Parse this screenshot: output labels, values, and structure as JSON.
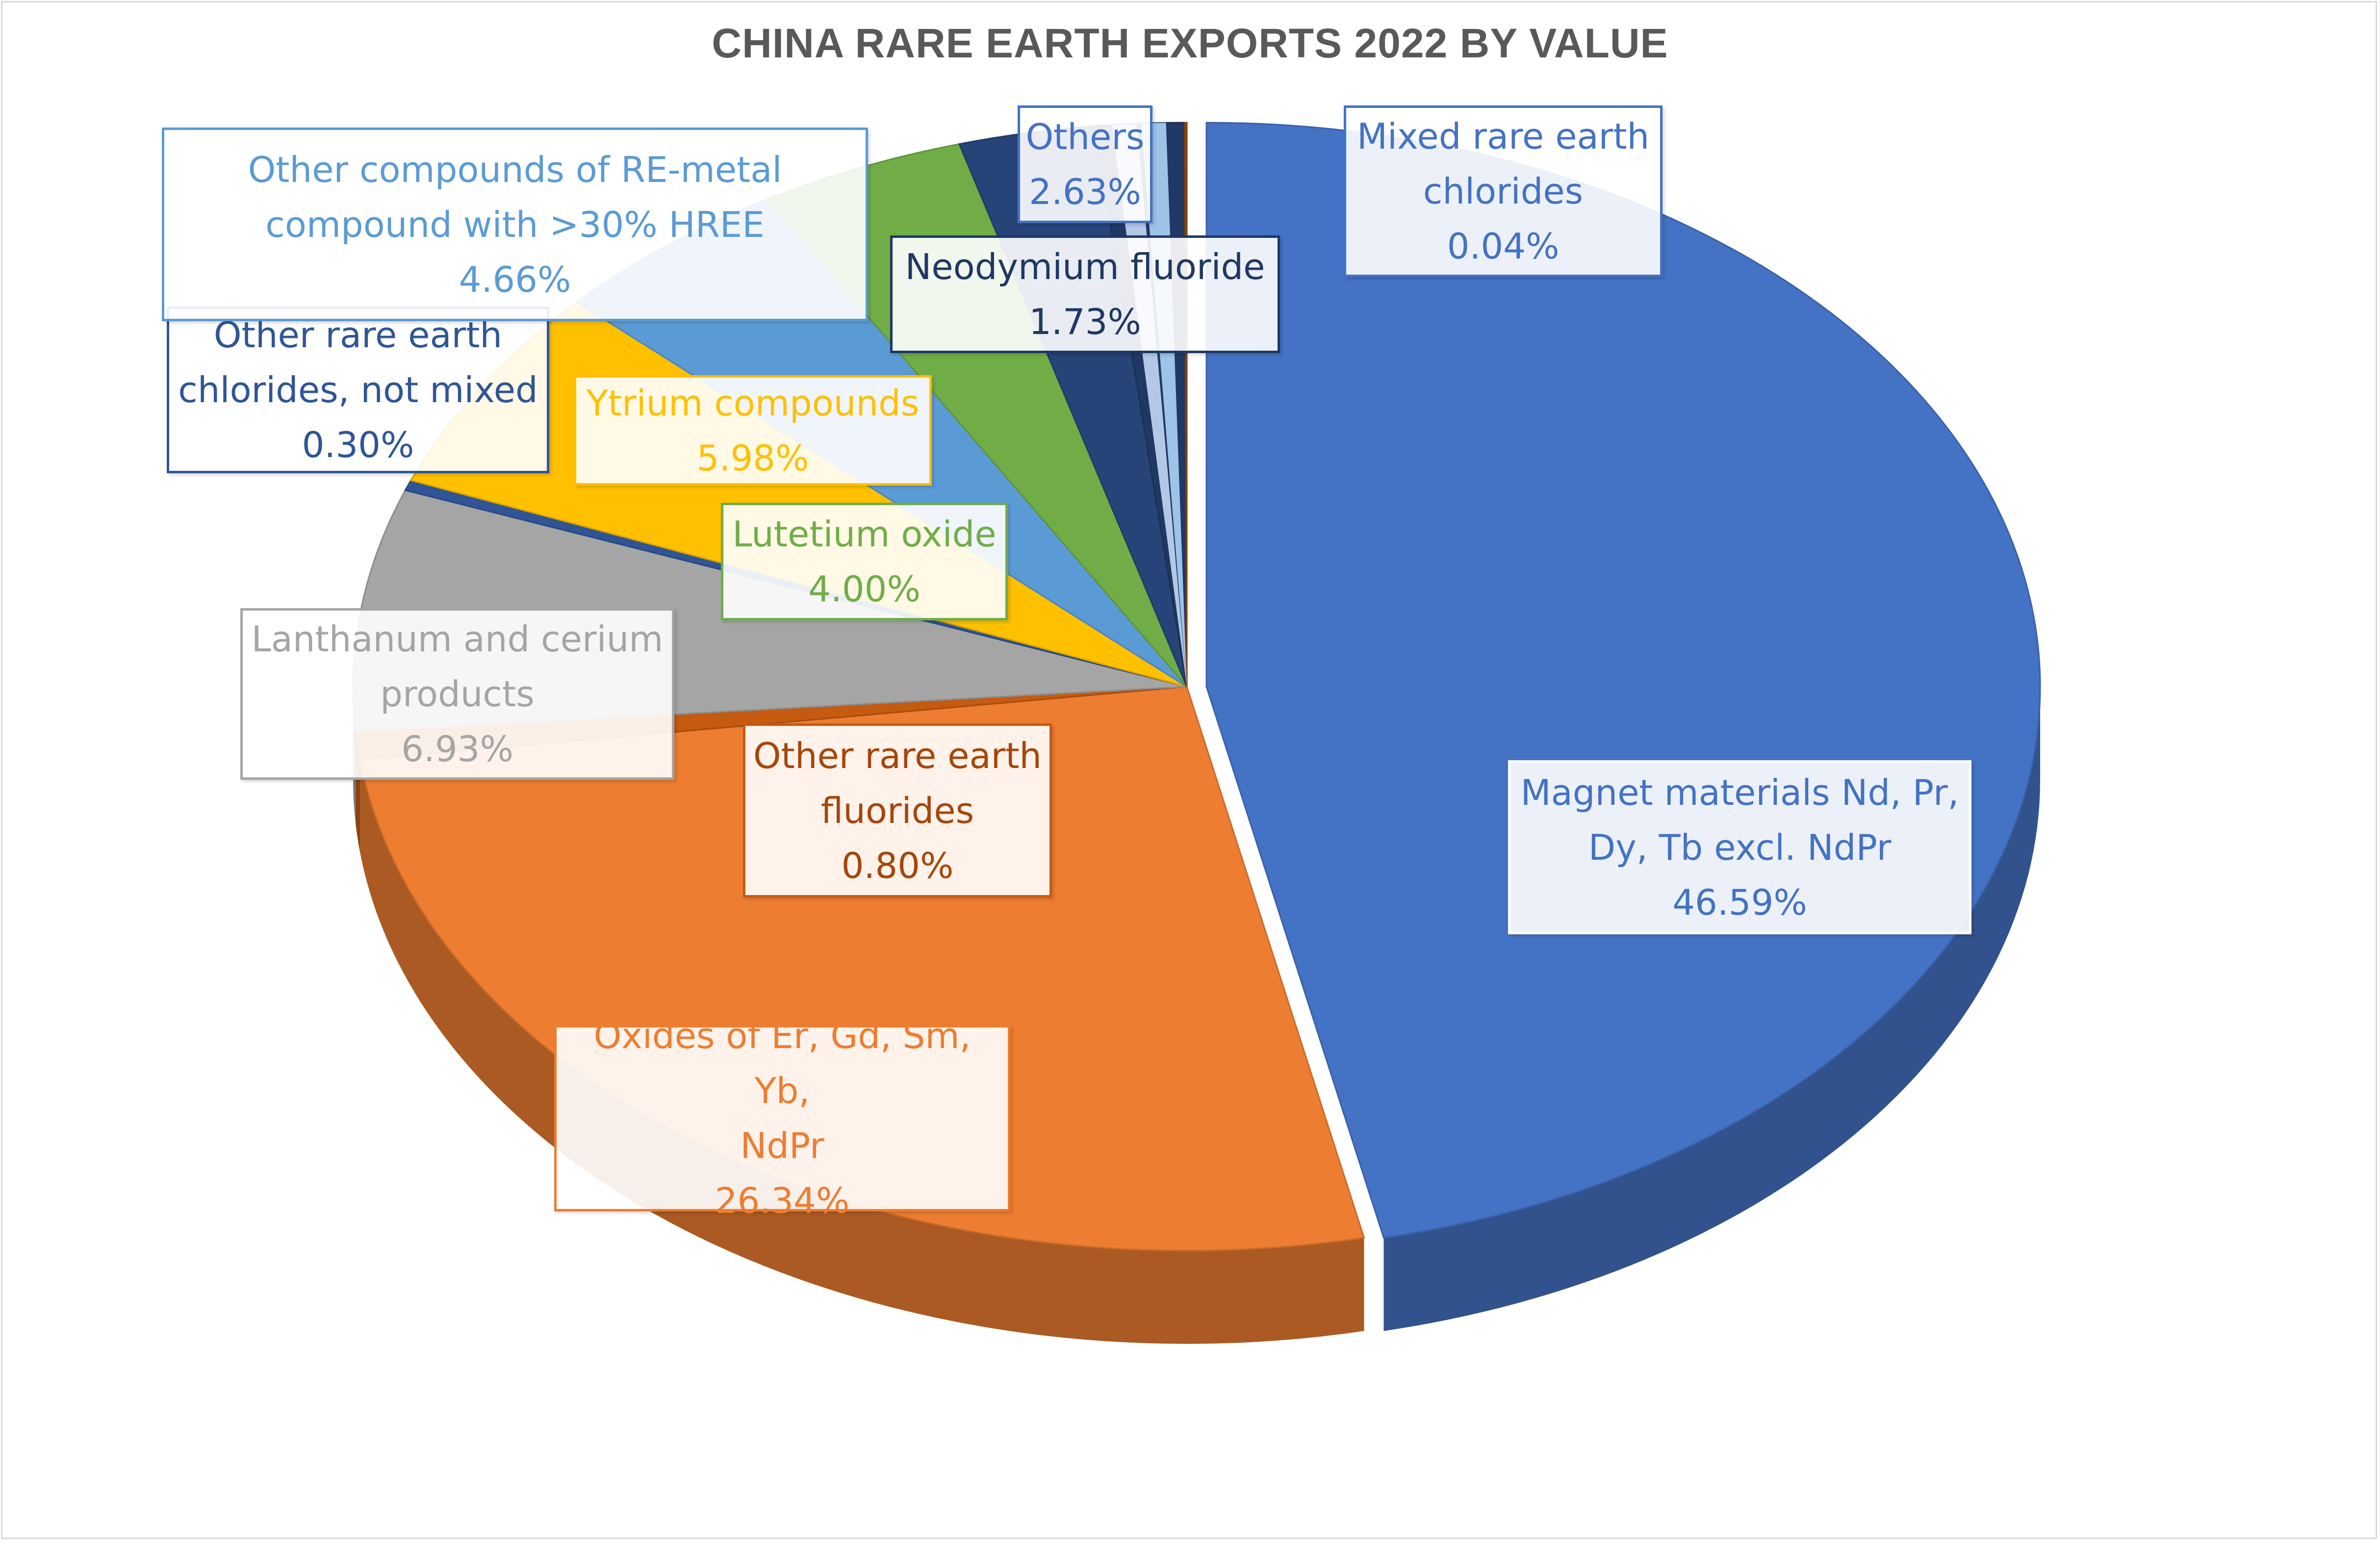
{
  "chart_data": {
    "type": "pie",
    "title": "CHINA RARE EARTH EXPORTS 2022 BY VALUE",
    "slices": [
      {
        "label": "Magnet materials Nd, Pr, Dy, Tb excl. NdPr",
        "value": 46.59,
        "value_label": "46.59%",
        "color": "#4472c4",
        "text_color": "#4472c4"
      },
      {
        "label": "Oxides of Er, Gd, Sm, Yb, NdPr",
        "value": 26.34,
        "value_label": "26.34%",
        "color": "#ed7d31",
        "text_color": "#ed7d31"
      },
      {
        "label": "Other rare earth fluorides",
        "value": 0.8,
        "value_label": "0.80%",
        "color": "#c55a11",
        "text_color": "#a5460a"
      },
      {
        "label": "Lanthanum and cerium products",
        "value": 6.93,
        "value_label": "6.93%",
        "color": "#a5a5a5",
        "text_color": "#a5a5a5"
      },
      {
        "label": "Other rare earth chlorides, not mixed",
        "value": 0.3,
        "value_label": "0.30%",
        "color": "#2f5597",
        "text_color": "#2f5597"
      },
      {
        "label": "Ytrium compounds",
        "value": 5.98,
        "value_label": "5.98%",
        "color": "#ffc000",
        "text_color": "#ffc000"
      },
      {
        "label": "Other compounds of RE-metal compound with >30% HREE",
        "value": 4.66,
        "value_label": "4.66%",
        "color": "#5b9bd5",
        "text_color": "#5b9bd5"
      },
      {
        "label": "Lutetium oxide",
        "value": 4.0,
        "value_label": "4.00%",
        "color": "#70ad47",
        "text_color": "#70ad47"
      },
      {
        "label": "Others",
        "value": 2.63,
        "value_label": "2.63%",
        "color": "#264478",
        "text_color": "#4472c4"
      },
      {
        "label": "Neodymium fluoride",
        "value": 1.73,
        "value_label": "1.73%",
        "color": "#1f3864",
        "text_color": "#1f3864"
      },
      {
        "label": "Mixed rare earth chlorides",
        "value": 0.04,
        "value_label": "0.04%",
        "color": "#9e480e",
        "text_color": "#4472c4"
      }
    ],
    "extra_segments": [
      {
        "color": "#b4c7e7"
      },
      {
        "color": "#9dc3e6"
      }
    ],
    "legend": "none",
    "style": "3d-exploded-pie"
  },
  "callouts": [
    {
      "id": "magnet",
      "lines": [
        "Magnet materials Nd, Pr,",
        "Dy, Tb excl. NdPr",
        "46.59%"
      ],
      "color": "#4472c4",
      "border": "#ffffff"
    },
    {
      "id": "oxides",
      "lines": [
        "Oxides of Er, Gd, Sm, Yb,",
        "NdPr",
        "26.34%"
      ],
      "color": "#ed7d31",
      "border": "#ed7d31"
    },
    {
      "id": "fluorides",
      "lines": [
        "Other rare earth",
        "fluorides",
        "0.80%"
      ],
      "color": "#a5460a",
      "border": "#c55a11"
    },
    {
      "id": "lanthanum",
      "lines": [
        "Lanthanum and cerium",
        "products",
        "6.93%"
      ],
      "color": "#a5a5a5",
      "border": "#a5a5a5"
    },
    {
      "id": "chlorides-not-mixed",
      "lines": [
        "Other rare earth",
        "chlorides, not mixed",
        "0.30%"
      ],
      "color": "#2f5597",
      "border": "#2f5597"
    },
    {
      "id": "ytrium",
      "lines": [
        "Ytrium compounds",
        "5.98%"
      ],
      "color": "#ffc000",
      "border": "#ffc000"
    },
    {
      "id": "hree",
      "lines": [
        "Other compounds of RE-metal",
        "compound with >30% HREE",
        "4.66%"
      ],
      "color": "#5b9bd5",
      "border": "#5b9bd5"
    },
    {
      "id": "lutetium",
      "lines": [
        "Lutetium oxide",
        "4.00%"
      ],
      "color": "#70ad47",
      "border": "#70ad47"
    },
    {
      "id": "others",
      "lines": [
        "Others",
        "2.63%"
      ],
      "color": "#4472c4",
      "border": "#4472c4"
    },
    {
      "id": "neodymium",
      "lines": [
        "Neodymium fluoride",
        "1.73%"
      ],
      "color": "#1f3864",
      "border": "#1f3864"
    },
    {
      "id": "mixed",
      "lines": [
        "Mixed rare earth",
        "chlorides",
        "0.04%"
      ],
      "color": "#4472c4",
      "border": "#4472c4"
    }
  ]
}
